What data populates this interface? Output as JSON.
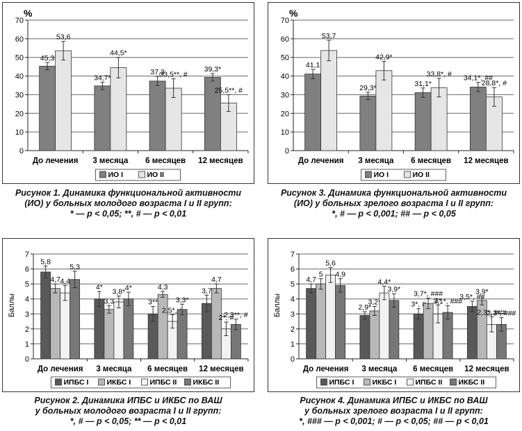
{
  "chart_data": [
    {
      "type": "bar",
      "ylabel": "%",
      "ylim": [
        0,
        70
      ],
      "yticks": [
        0,
        10,
        20,
        30,
        40,
        50,
        60,
        70
      ],
      "categories": [
        "До лечения",
        "3 месяца",
        "6 месяцев",
        "12 месяцев"
      ],
      "series": [
        {
          "name": "ИО I",
          "color": "#808080",
          "values": [
            45.3,
            34.7,
            37.3,
            39.3
          ],
          "errors": [
            2,
            2,
            2.5,
            2
          ],
          "labels": [
            "45,3",
            "34,7*",
            "37,3",
            "39,3*"
          ]
        },
        {
          "name": "ИО II",
          "color": "#e6e6e6",
          "values": [
            53.6,
            44.5,
            33.5,
            25.5
          ],
          "errors": [
            5,
            5.5,
            5,
            4.5
          ],
          "labels": [
            "53,6",
            "44,5*",
            "33,5**, #",
            "25,5**, #"
          ]
        }
      ],
      "grid": true,
      "legend": "bottom",
      "caption": [
        "Рисунок 1. Динамика функциональной активности",
        "(ИО) у больных молодого возраста I и II групп:",
        "* — р < 0,05; **, # — р < 0,01"
      ]
    },
    {
      "type": "bar",
      "ylabel": "Баллы",
      "ylim": [
        0,
        7
      ],
      "yticks": [
        0,
        1,
        2,
        3,
        4,
        5,
        6,
        7
      ],
      "categories": [
        "До лечения",
        "3 месяца",
        "6 месяцев",
        "12 месяцев"
      ],
      "series": [
        {
          "name": "ИПБС I",
          "color": "#595959",
          "values": [
            5.8,
            4.0,
            3.0,
            3.7
          ],
          "errors": [
            0.4,
            0.5,
            0.5,
            0.55
          ],
          "labels": [
            "5,8",
            "4*",
            "3**",
            "3,7"
          ]
        },
        {
          "name": "ИКБС I",
          "color": "#b8b8b8",
          "values": [
            4.7,
            3.3,
            4.3,
            4.7
          ],
          "errors": [
            0.3,
            0.25,
            0.2,
            0.3
          ],
          "labels": [
            "4,7",
            "3,3",
            "4,3",
            "4,7"
          ]
        },
        {
          "name": "ИПБС II",
          "color": "#f2f2f2",
          "values": [
            4.4,
            3.8,
            2.5,
            2.0
          ],
          "errors": [
            0.5,
            0.4,
            0.45,
            0.45
          ],
          "labels": [
            "4,4",
            "3,8*",
            "2,5*, #",
            "2*, #"
          ]
        },
        {
          "name": "ИКБС II",
          "color": "#777777",
          "values": [
            5.3,
            4.0,
            3.3,
            2.3
          ],
          "errors": [
            0.55,
            0.45,
            0.35,
            0.35
          ],
          "labels": [
            "5,3",
            "4*",
            "3,3*",
            "2,3**, #"
          ]
        }
      ],
      "grid": true,
      "legend": "bottom",
      "caption": [
        "Рисунок 2. Динамика ИПБС и ИКБС по ВАШ",
        "у больных молодого возраста I и II групп:",
        "*, # — р < 0,05; ** — р < 0,01"
      ]
    },
    {
      "type": "bar",
      "ylabel": "%",
      "ylim": [
        0,
        70
      ],
      "yticks": [
        0,
        10,
        20,
        30,
        40,
        50,
        60,
        70
      ],
      "categories": [
        "До лечения",
        "3 месяца",
        "6 месяцев",
        "12 месяцев"
      ],
      "series": [
        {
          "name": "ИО I",
          "color": "#808080",
          "values": [
            41.1,
            29.3,
            31.1,
            34.1
          ],
          "errors": [
            2.5,
            2,
            2.5,
            2.5
          ],
          "labels": [
            "41,1",
            "29,3*",
            "31,1*",
            "34,1*, ##"
          ]
        },
        {
          "name": "ИО II",
          "color": "#e6e6e6",
          "values": [
            53.7,
            42.9,
            33.8,
            28.8
          ],
          "errors": [
            5.5,
            5,
            5,
            5
          ],
          "labels": [
            "53,7",
            "42,9*",
            "33,8*, #",
            "28,8*, #"
          ]
        }
      ],
      "grid": true,
      "legend": "bottom",
      "caption": [
        "Рисунок 3. Динамика функциональной активности",
        "(ИО) у больных зрелого возраста I и II групп:",
        "*, # — р < 0,001; ## — р < 0,05"
      ]
    },
    {
      "type": "bar",
      "ylabel": "Баллы",
      "ylim": [
        0,
        7
      ],
      "yticks": [
        0,
        1,
        2,
        3,
        4,
        5,
        6,
        7
      ],
      "categories": [
        "До лечения",
        "3 месяца",
        "6 месяцев",
        "12 месяцев"
      ],
      "series": [
        {
          "name": "ИПБС I",
          "color": "#595959",
          "values": [
            4.7,
            2.9,
            3.0,
            3.5
          ],
          "errors": [
            0.3,
            0.25,
            0.35,
            0.35
          ],
          "labels": [
            "4,7",
            "2,9*",
            "3*, #",
            "3,5*, ##"
          ]
        },
        {
          "name": "ИКБС I",
          "color": "#b8b8b8",
          "values": [
            5.0,
            3.2,
            3.7,
            3.9
          ],
          "errors": [
            0.35,
            0.3,
            0.35,
            0.3
          ],
          "labels": [
            "5",
            "3,2*",
            "3,7*, ###",
            "3,9*"
          ]
        },
        {
          "name": "ИПБС II",
          "color": "#f2f2f2",
          "values": [
            5.6,
            4.4,
            3.0,
            2.3
          ],
          "errors": [
            0.5,
            0.45,
            0.6,
            0.5
          ],
          "labels": [
            "5,6",
            "4,4*",
            "3*",
            "2,3*, ###"
          ]
        },
        {
          "name": "ИКБС II",
          "color": "#777777",
          "values": [
            4.9,
            3.9,
            3.1,
            2.3
          ],
          "errors": [
            0.45,
            0.45,
            0.45,
            0.45
          ],
          "labels": [
            "4,9",
            "3,9*",
            "3,1*, ###",
            "2,3*, ###"
          ]
        }
      ],
      "grid": true,
      "legend": "bottom",
      "caption": [
        "Рисунок 4. Динамика ИПБС и ИКБС по ВАШ",
        "у больных зрелого возраста I и II групп:",
        "*, ### — р < 0,001; # — р < 0,05; ## — р < 0,01"
      ]
    }
  ]
}
